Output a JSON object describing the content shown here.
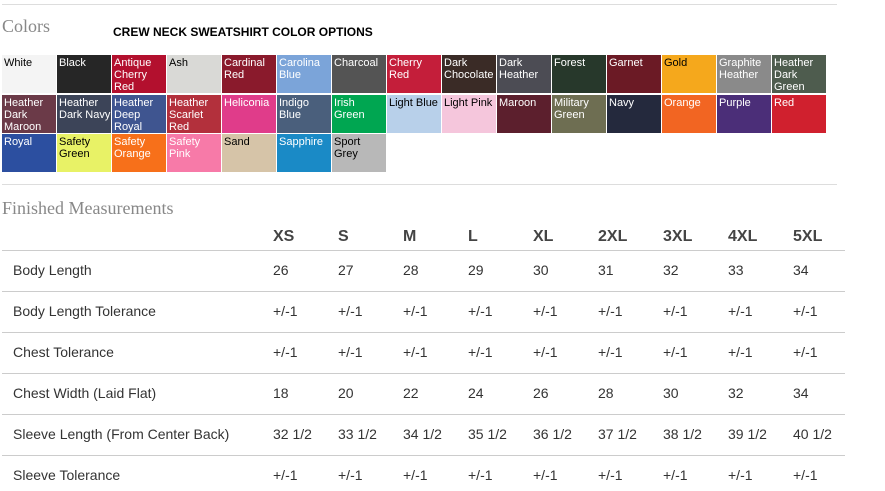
{
  "colors": {
    "heading": "Colors",
    "title": "CREW NECK SWEATSHIRT COLOR OPTIONS",
    "swatches": [
      {
        "name": "White",
        "color": "#f4f4f4",
        "text_color": "#000000"
      },
      {
        "name": "Black",
        "color": "#262626",
        "text_color": "#ffffff"
      },
      {
        "name": "Antique Cherry Red",
        "color": "#b3102e",
        "text_color": "#ffffff"
      },
      {
        "name": "Ash",
        "color": "#d9d9d6",
        "text_color": "#000000"
      },
      {
        "name": "Cardinal Red",
        "color": "#8a1a2c",
        "text_color": "#ffffff"
      },
      {
        "name": "Carolina Blue",
        "color": "#7ba4d9",
        "text_color": "#ffffff"
      },
      {
        "name": "Charcoal",
        "color": "#545454",
        "text_color": "#ffffff"
      },
      {
        "name": "Cherry Red",
        "color": "#c41e3a",
        "text_color": "#ffffff"
      },
      {
        "name": "Dark Chocolate",
        "color": "#3a2b26",
        "text_color": "#ffffff"
      },
      {
        "name": "Dark Heather",
        "color": "#4c4c54",
        "text_color": "#ffffff"
      },
      {
        "name": "Forest",
        "color": "#27382b",
        "text_color": "#ffffff"
      },
      {
        "name": "Garnet",
        "color": "#6b1a25",
        "text_color": "#ffffff"
      },
      {
        "name": "Gold",
        "color": "#f5a81c",
        "text_color": "#000000"
      },
      {
        "name": "Graphite Heather",
        "color": "#8a8a8a",
        "text_color": "#ffffff"
      },
      {
        "name": "Heather Dark Green",
        "color": "#4e5c4e",
        "text_color": "#ffffff"
      },
      {
        "name": "Heather Dark Maroon",
        "color": "#6b3a48",
        "text_color": "#ffffff"
      },
      {
        "name": "Heather Dark Navy",
        "color": "#3c4458",
        "text_color": "#ffffff"
      },
      {
        "name": "Heather Deep Royal",
        "color": "#3f5590",
        "text_color": "#ffffff"
      },
      {
        "name": "Heather Scarlet Red",
        "color": "#b3303c",
        "text_color": "#ffffff"
      },
      {
        "name": "Heliconia",
        "color": "#e03c8a",
        "text_color": "#ffffff"
      },
      {
        "name": "Indigo Blue",
        "color": "#4a5f7c",
        "text_color": "#ffffff"
      },
      {
        "name": "Irish Green",
        "color": "#00a651",
        "text_color": "#ffffff"
      },
      {
        "name": "Light Blue",
        "color": "#b8d0ea",
        "text_color": "#000000"
      },
      {
        "name": "Light Pink",
        "color": "#f5c6dc",
        "text_color": "#000000"
      },
      {
        "name": "Maroon",
        "color": "#5c1f2d",
        "text_color": "#ffffff"
      },
      {
        "name": "Military Green",
        "color": "#6e6e52",
        "text_color": "#ffffff"
      },
      {
        "name": "Navy",
        "color": "#24293d",
        "text_color": "#ffffff"
      },
      {
        "name": "Orange",
        "color": "#f26522",
        "text_color": "#ffffff"
      },
      {
        "name": "Purple",
        "color": "#4b2e78",
        "text_color": "#ffffff"
      },
      {
        "name": "Red",
        "color": "#d0202e",
        "text_color": "#ffffff"
      },
      {
        "name": "Royal",
        "color": "#2c4fa0",
        "text_color": "#ffffff"
      },
      {
        "name": "Safety Green",
        "color": "#e8f266",
        "text_color": "#000000"
      },
      {
        "name": "Safety Orange",
        "color": "#f7701a",
        "text_color": "#ffffff"
      },
      {
        "name": "Safety Pink",
        "color": "#f77aa8",
        "text_color": "#ffffff"
      },
      {
        "name": "Sand",
        "color": "#d6c4a8",
        "text_color": "#000000"
      },
      {
        "name": "Sapphire",
        "color": "#1a8ac6",
        "text_color": "#ffffff"
      },
      {
        "name": "Sport Grey",
        "color": "#b8b8b8",
        "text_color": "#000000"
      }
    ]
  },
  "measurements": {
    "heading": "Finished Measurements",
    "sizes": [
      "XS",
      "S",
      "M",
      "L",
      "XL",
      "2XL",
      "3XL",
      "4XL",
      "5XL"
    ],
    "rows": [
      {
        "label": "Body Length",
        "values": [
          26,
          27,
          28,
          29,
          30,
          31,
          32,
          33,
          34
        ]
      },
      {
        "label": "Body Length Tolerance",
        "values": [
          "+/-1",
          "+/-1",
          "+/-1",
          "+/-1",
          "+/-1",
          "+/-1",
          "+/-1",
          "+/-1",
          "+/-1"
        ]
      },
      {
        "label": "Chest Tolerance",
        "values": [
          "+/-1",
          "+/-1",
          "+/-1",
          "+/-1",
          "+/-1",
          "+/-1",
          "+/-1",
          "+/-1",
          "+/-1"
        ]
      },
      {
        "label": "Chest Width (Laid Flat)",
        "values": [
          18,
          20,
          22,
          24,
          26,
          28,
          30,
          32,
          34
        ]
      },
      {
        "label": "Sleeve Length (From Center Back)",
        "values": [
          "32 1/2",
          "33 1/2",
          "34 1/2",
          "35 1/2",
          "36 1/2",
          "37 1/2",
          "38 1/2",
          "39 1/2",
          "40 1/2"
        ]
      },
      {
        "label": "Sleeve Tolerance",
        "values": [
          "+/-1",
          "+/-1",
          "+/-1",
          "+/-1",
          "+/-1",
          "+/-1",
          "+/-1",
          "+/-1",
          "+/-1"
        ]
      }
    ]
  }
}
